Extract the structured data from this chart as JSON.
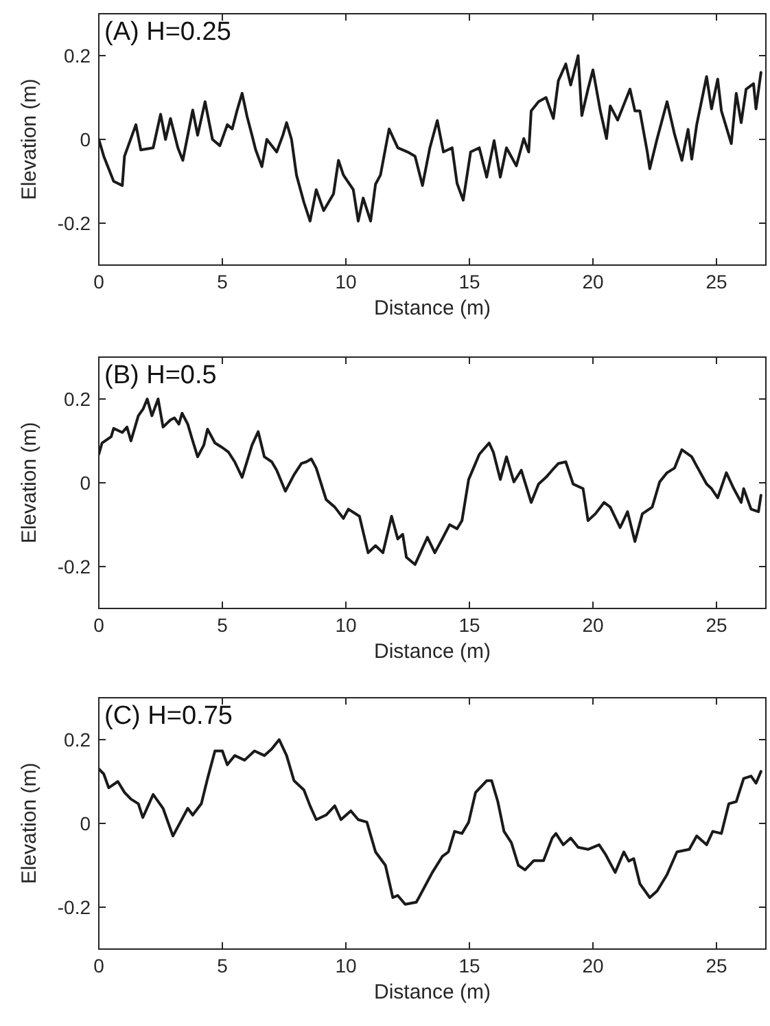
{
  "chart_data": [
    {
      "type": "line",
      "title": "(A) H=0.25",
      "xlabel": "Distance (m)",
      "ylabel": "Elevation (m)",
      "xlim": [
        0,
        27
      ],
      "ylim": [
        -0.3,
        0.3
      ],
      "xticks": [
        0,
        5,
        10,
        15,
        20,
        25
      ],
      "yticks": [
        -0.2,
        0,
        0.2
      ],
      "series": [
        {
          "color": "#1a1a1a",
          "x": [
            0,
            0.2,
            0.6,
            0.95,
            1.04,
            1.5,
            1.7,
            2.2,
            2.5,
            2.7,
            2.9,
            3.2,
            3.4,
            3.8,
            4,
            4.3,
            4.6,
            4.9,
            5.2,
            5.4,
            5.6,
            5.8,
            6,
            6.2,
            6.35,
            6.6,
            6.8,
            7.2,
            7.45,
            7.6,
            7.8,
            8,
            8.3,
            8.55,
            8.8,
            9.1,
            9.5,
            9.7,
            9.9,
            10.3,
            10.5,
            10.7,
            11,
            11.2,
            11.4,
            11.75,
            12.1,
            12.5,
            12.8,
            13.1,
            13.4,
            13.7,
            13.95,
            14.3,
            14.5,
            14.75,
            15.05,
            15.4,
            15.7,
            16,
            16.25,
            16.5,
            16.9,
            17.2,
            17.4,
            17.5,
            17.8,
            18.1,
            18.4,
            18.6,
            18.9,
            19.1,
            19.4,
            19.55,
            19.8,
            20,
            20.3,
            20.55,
            20.7,
            21,
            21.5,
            21.7,
            21.9,
            22.2,
            22.3,
            22.6,
            23,
            23.3,
            23.6,
            23.85,
            24,
            24.2,
            24.6,
            24.8,
            25.05,
            25.2,
            25.6,
            25.8,
            26,
            26.2,
            26.5,
            26.6,
            26.8
          ],
          "values": [
            0,
            -0.04,
            -0.1,
            -0.11,
            -0.04,
            0.035,
            -0.025,
            -0.02,
            0.06,
            0,
            0.05,
            -0.02,
            -0.05,
            0.07,
            0.01,
            0.09,
            0,
            -0.015,
            0.035,
            0.025,
            0.07,
            0.11,
            0.055,
            0.01,
            -0.025,
            -0.065,
            0,
            -0.03,
            0.01,
            0.04,
            0,
            -0.085,
            -0.15,
            -0.195,
            -0.12,
            -0.17,
            -0.13,
            -0.05,
            -0.085,
            -0.12,
            -0.195,
            -0.14,
            -0.195,
            -0.107,
            -0.085,
            0.025,
            -0.02,
            -0.03,
            -0.04,
            -0.11,
            -0.02,
            0.045,
            -0.03,
            -0.02,
            -0.105,
            -0.145,
            -0.03,
            -0.02,
            -0.09,
            -0.003,
            -0.09,
            -0.02,
            -0.063,
            0.002,
            -0.03,
            0.068,
            0.09,
            0.1,
            0.05,
            0.14,
            0.18,
            0.13,
            0.2,
            0.057,
            0.12,
            0.166,
            0.068,
            0.002,
            0.08,
            0.046,
            0.12,
            0.068,
            0.068,
            -0.03,
            -0.07,
            0.002,
            0.09,
            0.013,
            -0.05,
            0.024,
            -0.047,
            0.035,
            0.15,
            0.073,
            0.144,
            0.068,
            -0.01,
            0.11,
            0.04,
            0.12,
            0.133,
            0.073,
            0.16
          ]
        }
      ]
    },
    {
      "type": "line",
      "title": "(B) H=0.5",
      "xlabel": "Distance (m)",
      "ylabel": "Elevation (m)",
      "xlim": [
        0,
        27
      ],
      "ylim": [
        -0.3,
        0.3
      ],
      "xticks": [
        0,
        5,
        10,
        15,
        20,
        25
      ],
      "yticks": [
        -0.2,
        0,
        0.2
      ],
      "series": [
        {
          "color": "#1a1a1a",
          "x": [
            0,
            0.13,
            0.5,
            0.6,
            0.95,
            1.14,
            1.3,
            1.6,
            1.8,
            1.96,
            2.15,
            2.4,
            2.6,
            2.9,
            3.06,
            3.24,
            3.37,
            3.6,
            3.8,
            4,
            4.25,
            4.4,
            4.7,
            5,
            5.25,
            5.5,
            5.8,
            6.2,
            6.45,
            6.7,
            7,
            7.2,
            7.55,
            7.9,
            8.2,
            8.4,
            8.6,
            8.8,
            9.2,
            9.55,
            9.9,
            10.1,
            10.55,
            10.9,
            11.2,
            11.5,
            11.85,
            12.1,
            12.3,
            12.45,
            12.8,
            13.3,
            13.6,
            13.9,
            14.2,
            14.5,
            14.7,
            14.97,
            15.2,
            15.4,
            15.8,
            15.97,
            16.25,
            16.5,
            16.8,
            17.1,
            17.5,
            17.8,
            18.1,
            18.35,
            18.6,
            18.9,
            19.2,
            19.6,
            19.8,
            20.1,
            20.45,
            20.7,
            21.1,
            21.4,
            21.7,
            22,
            22.4,
            22.7,
            23,
            23.3,
            23.6,
            24,
            24.2,
            24.6,
            24.8,
            25.05,
            25.4,
            25.7,
            26,
            26.1,
            26.4,
            26.7,
            26.8
          ],
          "values": [
            0.068,
            0.095,
            0.11,
            0.13,
            0.12,
            0.133,
            0.1,
            0.16,
            0.177,
            0.2,
            0.16,
            0.2,
            0.133,
            0.15,
            0.155,
            0.14,
            0.166,
            0.14,
            0.1,
            0.062,
            0.09,
            0.128,
            0.095,
            0.084,
            0.073,
            0.05,
            0.013,
            0.09,
            0.122,
            0.062,
            0.05,
            0.03,
            -0.02,
            0.019,
            0.046,
            0.05,
            0.057,
            0.035,
            -0.04,
            -0.058,
            -0.085,
            -0.063,
            -0.08,
            -0.167,
            -0.15,
            -0.167,
            -0.08,
            -0.134,
            -0.123,
            -0.178,
            -0.195,
            -0.13,
            -0.167,
            -0.134,
            -0.1,
            -0.11,
            -0.09,
            0.008,
            0.04,
            0.068,
            0.095,
            0.073,
            0.008,
            0.062,
            0.002,
            0.03,
            -0.047,
            -0.003,
            0.013,
            0.03,
            0.046,
            0.05,
            -0.003,
            -0.014,
            -0.09,
            -0.074,
            -0.047,
            -0.058,
            -0.107,
            -0.069,
            -0.14,
            -0.074,
            -0.058,
            0.002,
            0.024,
            0.035,
            0.079,
            0.062,
            0.04,
            -0.003,
            -0.014,
            -0.036,
            0.024,
            -0.014,
            -0.047,
            -0.014,
            -0.063,
            -0.069,
            -0.03
          ]
        }
      ]
    },
    {
      "type": "line",
      "title": "(C) H=0.75",
      "xlabel": "Distance (m)",
      "ylabel": "Elevation (m)",
      "xlim": [
        0,
        27
      ],
      "ylim": [
        -0.3,
        0.3
      ],
      "xticks": [
        0,
        5,
        10,
        15,
        20,
        25
      ],
      "yticks": [
        -0.2,
        0,
        0.2
      ],
      "series": [
        {
          "color": "#1a1a1a",
          "x": [
            0,
            0.2,
            0.4,
            0.77,
            1.04,
            1.3,
            1.6,
            1.78,
            2.2,
            2.6,
            3,
            3.2,
            3.6,
            3.8,
            4.15,
            4.4,
            4.7,
            5,
            5.2,
            5.5,
            5.9,
            6.3,
            6.7,
            7,
            7.3,
            7.6,
            7.9,
            8.3,
            8.55,
            8.8,
            9.2,
            9.55,
            9.8,
            10.2,
            10.5,
            10.85,
            11.2,
            11.6,
            11.9,
            12.1,
            12.4,
            12.85,
            13,
            13.3,
            13.5,
            13.9,
            14.15,
            14.4,
            14.7,
            14.97,
            15.25,
            15.7,
            15.9,
            16.15,
            16.4,
            16.7,
            16.98,
            17.25,
            17.6,
            18,
            18.35,
            18.5,
            18.8,
            19.1,
            19.4,
            19.8,
            20.25,
            20.5,
            20.9,
            21.25,
            21.45,
            21.65,
            21.9,
            22.3,
            22.6,
            23,
            23.4,
            23.9,
            24.2,
            24.6,
            24.85,
            25.2,
            25.5,
            25.8,
            26.1,
            26.4,
            26.6,
            26.8
          ],
          "values": [
            0.13,
            0.118,
            0.085,
            0.1,
            0.074,
            0.058,
            0.047,
            0.014,
            0.069,
            0.036,
            -0.03,
            -0.008,
            0.036,
            0.02,
            0.047,
            0.107,
            0.173,
            0.173,
            0.14,
            0.162,
            0.151,
            0.173,
            0.162,
            0.178,
            0.2,
            0.162,
            0.102,
            0.08,
            0.042,
            0.009,
            0.02,
            0.042,
            0.009,
            0.03,
            0.009,
            0.003,
            -0.068,
            -0.1,
            -0.177,
            -0.172,
            -0.193,
            -0.188,
            -0.172,
            -0.139,
            -0.117,
            -0.079,
            -0.068,
            -0.019,
            -0.024,
            0.003,
            0.074,
            0.102,
            0.102,
            0.052,
            -0.019,
            -0.046,
            -0.1,
            -0.111,
            -0.089,
            -0.089,
            -0.035,
            -0.024,
            -0.051,
            -0.035,
            -0.057,
            -0.062,
            -0.051,
            -0.073,
            -0.117,
            -0.068,
            -0.09,
            -0.084,
            -0.144,
            -0.177,
            -0.161,
            -0.122,
            -0.068,
            -0.062,
            -0.03,
            -0.051,
            -0.019,
            -0.024,
            0.047,
            0.052,
            0.107,
            0.113,
            0.096,
            0.124
          ]
        }
      ]
    }
  ]
}
